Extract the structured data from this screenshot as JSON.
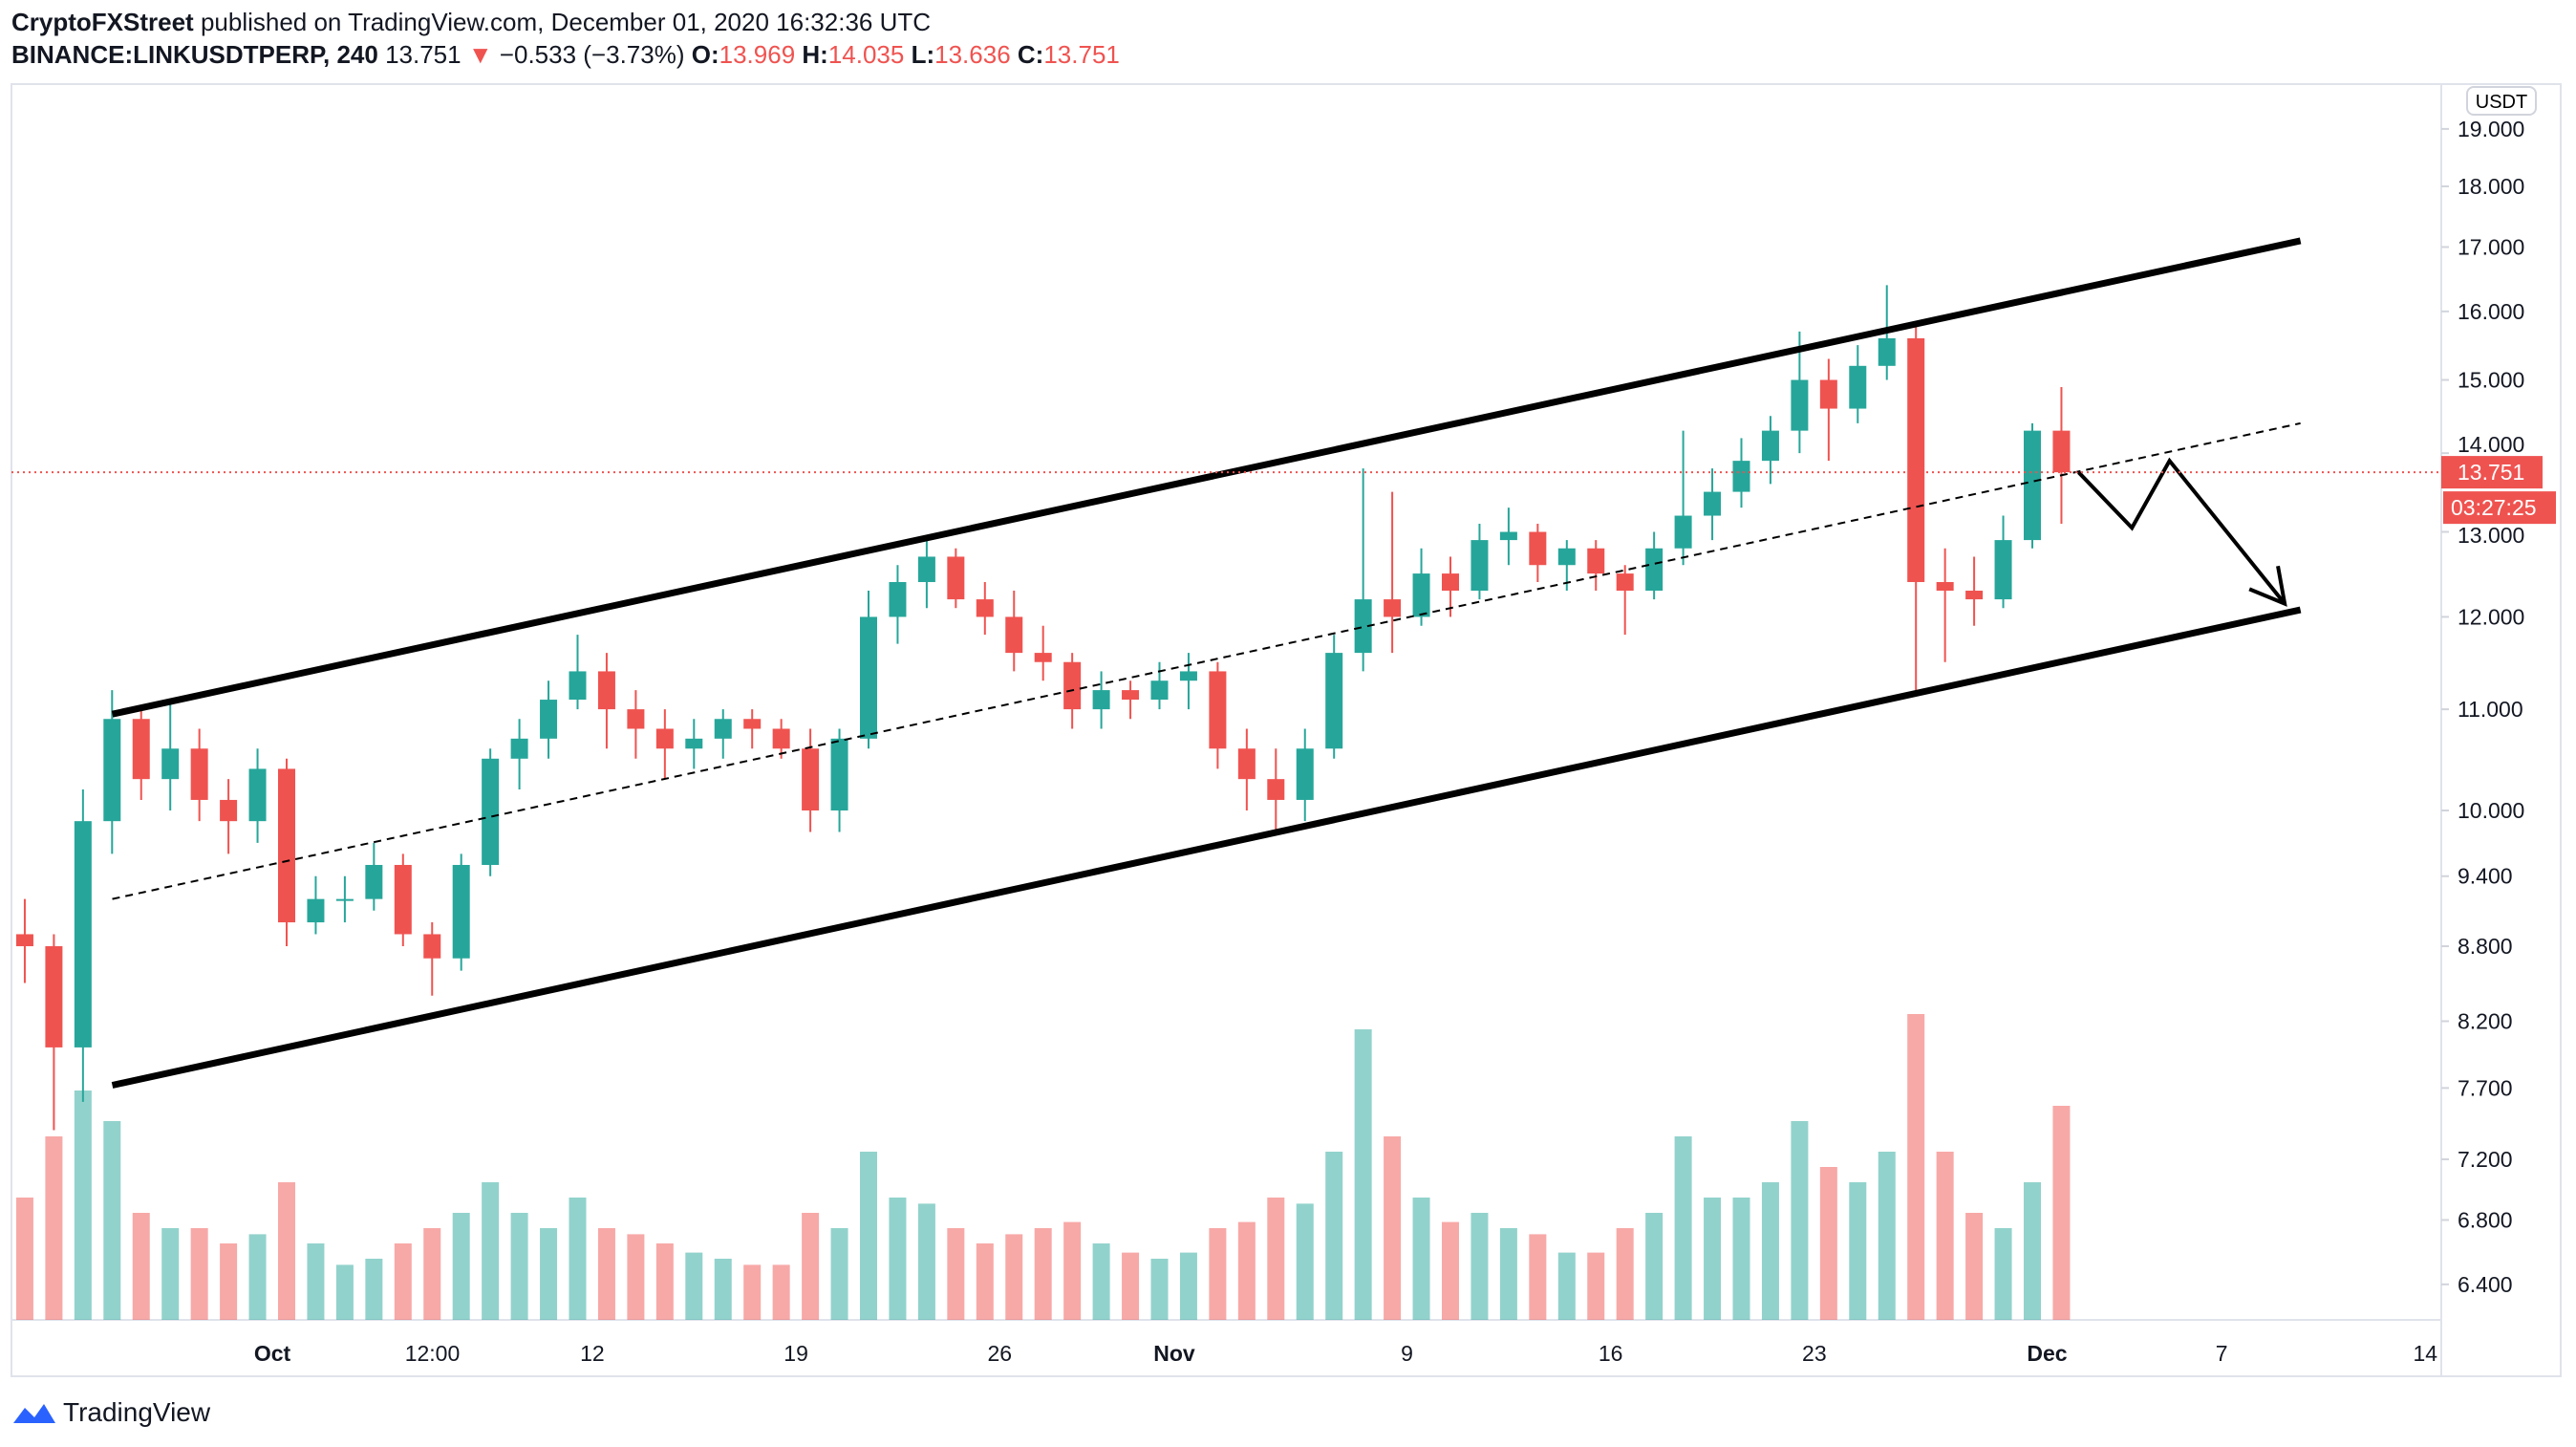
{
  "header": {
    "author": "CryptoFXStreet",
    "published_text": "published on TradingView.com, December 01, 2020 16:32:36 UTC",
    "symbol": "BINANCE:LINKUSDTPERP, 240",
    "last": "13.751",
    "change": "−0.533 (−3.73%)",
    "o_label": "O:",
    "o": "13.969",
    "h_label": "H:",
    "h": "14.035",
    "l_label": "L:",
    "l": "13.636",
    "c_label": "C:",
    "c": "13.751"
  },
  "currency_badge": "USDT",
  "last_price_label": "13.751",
  "countdown_label": "03:27:25",
  "brand": "TradingView",
  "colors": {
    "up": "#26a69a",
    "down": "#ef5350",
    "trendline": "#000000"
  },
  "chart_data": {
    "type": "candlestick",
    "interval": "240",
    "scale": "log",
    "ylim": [
      6.2,
      19.5
    ],
    "y_ticks": [
      "19.000",
      "18.000",
      "17.000",
      "16.000",
      "15.000",
      "14.000",
      "13.000",
      "12.000",
      "11.000",
      "10.000",
      "9.400",
      "8.800",
      "8.200",
      "7.700",
      "7.200",
      "6.800",
      "6.400"
    ],
    "x_ticks": [
      {
        "label": "Oct",
        "date": "2020-10-01"
      },
      {
        "label": "12:00",
        "date": "2020-10-06T12:00"
      },
      {
        "label": "12",
        "date": "2020-10-12"
      },
      {
        "label": "19",
        "date": "2020-10-19"
      },
      {
        "label": "26",
        "date": "2020-10-26"
      },
      {
        "label": "Nov",
        "date": "2020-11-01"
      },
      {
        "label": "9",
        "date": "2020-11-09"
      },
      {
        "label": "16",
        "date": "2020-11-16"
      },
      {
        "label": "23",
        "date": "2020-11-23"
      },
      {
        "label": "Dec",
        "date": "2020-12-01"
      },
      {
        "label": "7",
        "date": "2020-12-07"
      },
      {
        "label": "14",
        "date": "2020-12-14"
      }
    ],
    "columns": [
      "date",
      "open",
      "high",
      "low",
      "close",
      "volume_relative"
    ],
    "candles": [
      [
        "2020-09-22",
        8.9,
        9.2,
        8.5,
        8.8,
        40
      ],
      [
        "2020-09-23",
        8.8,
        8.9,
        7.4,
        8.0,
        60
      ],
      [
        "2020-09-24",
        8.0,
        10.2,
        7.6,
        9.9,
        75
      ],
      [
        "2020-09-25",
        9.9,
        11.2,
        9.6,
        10.9,
        65
      ],
      [
        "2020-09-26",
        10.9,
        11.0,
        10.1,
        10.3,
        35
      ],
      [
        "2020-09-27",
        10.3,
        11.1,
        10.0,
        10.6,
        30
      ],
      [
        "2020-09-28",
        10.6,
        10.8,
        9.9,
        10.1,
        30
      ],
      [
        "2020-09-29",
        10.1,
        10.3,
        9.6,
        9.9,
        25
      ],
      [
        "2020-09-30",
        9.9,
        10.6,
        9.7,
        10.4,
        28
      ],
      [
        "2020-10-01",
        10.4,
        10.5,
        8.8,
        9.0,
        45
      ],
      [
        "2020-10-02",
        9.0,
        9.4,
        8.9,
        9.2,
        25
      ],
      [
        "2020-10-03",
        9.2,
        9.4,
        9.0,
        9.2,
        18
      ],
      [
        "2020-10-04",
        9.2,
        9.7,
        9.1,
        9.5,
        20
      ],
      [
        "2020-10-05",
        9.5,
        9.6,
        8.8,
        8.9,
        25
      ],
      [
        "2020-10-06",
        8.9,
        9.0,
        8.4,
        8.7,
        30
      ],
      [
        "2020-10-07",
        8.7,
        9.6,
        8.6,
        9.5,
        35
      ],
      [
        "2020-10-08",
        9.5,
        10.6,
        9.4,
        10.5,
        45
      ],
      [
        "2020-10-09",
        10.5,
        10.9,
        10.2,
        10.7,
        35
      ],
      [
        "2020-10-10",
        10.7,
        11.3,
        10.5,
        11.1,
        30
      ],
      [
        "2020-10-11",
        11.1,
        11.8,
        11.0,
        11.4,
        40
      ],
      [
        "2020-10-12",
        11.4,
        11.6,
        10.6,
        11.0,
        30
      ],
      [
        "2020-10-13",
        11.0,
        11.2,
        10.5,
        10.8,
        28
      ],
      [
        "2020-10-14",
        10.8,
        11.0,
        10.3,
        10.6,
        25
      ],
      [
        "2020-10-15",
        10.6,
        10.9,
        10.4,
        10.7,
        22
      ],
      [
        "2020-10-16",
        10.7,
        11.0,
        10.5,
        10.9,
        20
      ],
      [
        "2020-10-17",
        10.9,
        11.0,
        10.6,
        10.8,
        18
      ],
      [
        "2020-10-18",
        10.8,
        10.9,
        10.5,
        10.6,
        18
      ],
      [
        "2020-10-19",
        10.6,
        10.8,
        9.8,
        10.0,
        35
      ],
      [
        "2020-10-20",
        10.0,
        10.8,
        9.8,
        10.7,
        30
      ],
      [
        "2020-10-21",
        10.7,
        12.3,
        10.6,
        12.0,
        55
      ],
      [
        "2020-10-22",
        12.0,
        12.6,
        11.7,
        12.4,
        40
      ],
      [
        "2020-10-23",
        12.4,
        12.9,
        12.1,
        12.7,
        38
      ],
      [
        "2020-10-24",
        12.7,
        12.8,
        12.1,
        12.2,
        30
      ],
      [
        "2020-10-25",
        12.2,
        12.4,
        11.8,
        12.0,
        25
      ],
      [
        "2020-10-26",
        12.0,
        12.3,
        11.4,
        11.6,
        28
      ],
      [
        "2020-10-27",
        11.6,
        11.9,
        11.3,
        11.5,
        30
      ],
      [
        "2020-10-28",
        11.5,
        11.6,
        10.8,
        11.0,
        32
      ],
      [
        "2020-10-29",
        11.0,
        11.4,
        10.8,
        11.2,
        25
      ],
      [
        "2020-10-30",
        11.2,
        11.3,
        10.9,
        11.1,
        22
      ],
      [
        "2020-10-31",
        11.1,
        11.5,
        11.0,
        11.3,
        20
      ],
      [
        "2020-11-01",
        11.3,
        11.6,
        11.0,
        11.4,
        22
      ],
      [
        "2020-11-02",
        11.4,
        11.5,
        10.4,
        10.6,
        30
      ],
      [
        "2020-11-03",
        10.6,
        10.8,
        10.0,
        10.3,
        32
      ],
      [
        "2020-11-04",
        10.3,
        10.6,
        9.8,
        10.1,
        40
      ],
      [
        "2020-11-05",
        10.1,
        10.8,
        9.9,
        10.6,
        38
      ],
      [
        "2020-11-06",
        10.6,
        11.8,
        10.5,
        11.6,
        55
      ],
      [
        "2020-11-07",
        11.6,
        13.8,
        11.4,
        12.2,
        95
      ],
      [
        "2020-11-08",
        12.2,
        13.5,
        11.6,
        12.0,
        60
      ],
      [
        "2020-11-09",
        12.0,
        12.8,
        11.9,
        12.5,
        40
      ],
      [
        "2020-11-10",
        12.5,
        12.7,
        12.0,
        12.3,
        32
      ],
      [
        "2020-11-11",
        12.3,
        13.1,
        12.2,
        12.9,
        35
      ],
      [
        "2020-11-12",
        12.9,
        13.3,
        12.6,
        13.0,
        30
      ],
      [
        "2020-11-13",
        13.0,
        13.1,
        12.4,
        12.6,
        28
      ],
      [
        "2020-11-14",
        12.6,
        12.9,
        12.3,
        12.8,
        22
      ],
      [
        "2020-11-15",
        12.8,
        12.9,
        12.3,
        12.5,
        22
      ],
      [
        "2020-11-16",
        12.5,
        12.6,
        11.8,
        12.3,
        30
      ],
      [
        "2020-11-17",
        12.3,
        13.0,
        12.2,
        12.8,
        35
      ],
      [
        "2020-11-18",
        12.8,
        14.3,
        12.6,
        13.2,
        60
      ],
      [
        "2020-11-19",
        13.2,
        13.8,
        12.9,
        13.5,
        40
      ],
      [
        "2020-11-20",
        13.5,
        14.2,
        13.3,
        13.9,
        40
      ],
      [
        "2020-11-21",
        13.9,
        14.5,
        13.6,
        14.3,
        45
      ],
      [
        "2020-11-22",
        14.3,
        15.7,
        14.0,
        15.0,
        65
      ],
      [
        "2020-11-23",
        15.0,
        15.3,
        13.9,
        14.6,
        50
      ],
      [
        "2020-11-24",
        14.6,
        15.5,
        14.4,
        15.2,
        45
      ],
      [
        "2020-11-25",
        15.2,
        16.4,
        15.0,
        15.6,
        55
      ],
      [
        "2020-11-26",
        15.6,
        15.8,
        11.2,
        12.4,
        100
      ],
      [
        "2020-11-27",
        12.4,
        12.8,
        11.5,
        12.3,
        55
      ],
      [
        "2020-11-28",
        12.3,
        12.7,
        11.9,
        12.2,
        35
      ],
      [
        "2020-11-29",
        12.2,
        13.2,
        12.1,
        12.9,
        30
      ],
      [
        "2020-11-30",
        12.9,
        14.4,
        12.8,
        14.3,
        45
      ],
      [
        "2020-12-01",
        14.3,
        14.9,
        13.1,
        13.751,
        70
      ]
    ],
    "last_price": 13.751,
    "drawings": [
      {
        "name": "channel-upper",
        "style": "solid",
        "points": [
          [
            "2020-09-25T12:00",
            10.95
          ],
          [
            "2020-12-09T17:00",
            17.1
          ]
        ]
      },
      {
        "name": "channel-lower",
        "style": "solid",
        "points": [
          [
            "2020-09-25T12:00",
            7.72
          ],
          [
            "2020-12-09T17:00",
            12.08
          ]
        ]
      },
      {
        "name": "channel-mid",
        "style": "dashed",
        "points": [
          [
            "2020-09-25T12:00",
            9.2
          ],
          [
            "2020-12-09T17:00",
            14.4
          ]
        ]
      },
      {
        "name": "projection-arrow",
        "style": "arrow",
        "points": [
          [
            "2020-12-02T02:00",
            13.75
          ],
          [
            "2020-12-03T22:00",
            13.05
          ],
          [
            "2020-12-05T05:00",
            13.9
          ],
          [
            "2020-12-09T04:00",
            12.15
          ]
        ]
      }
    ]
  }
}
